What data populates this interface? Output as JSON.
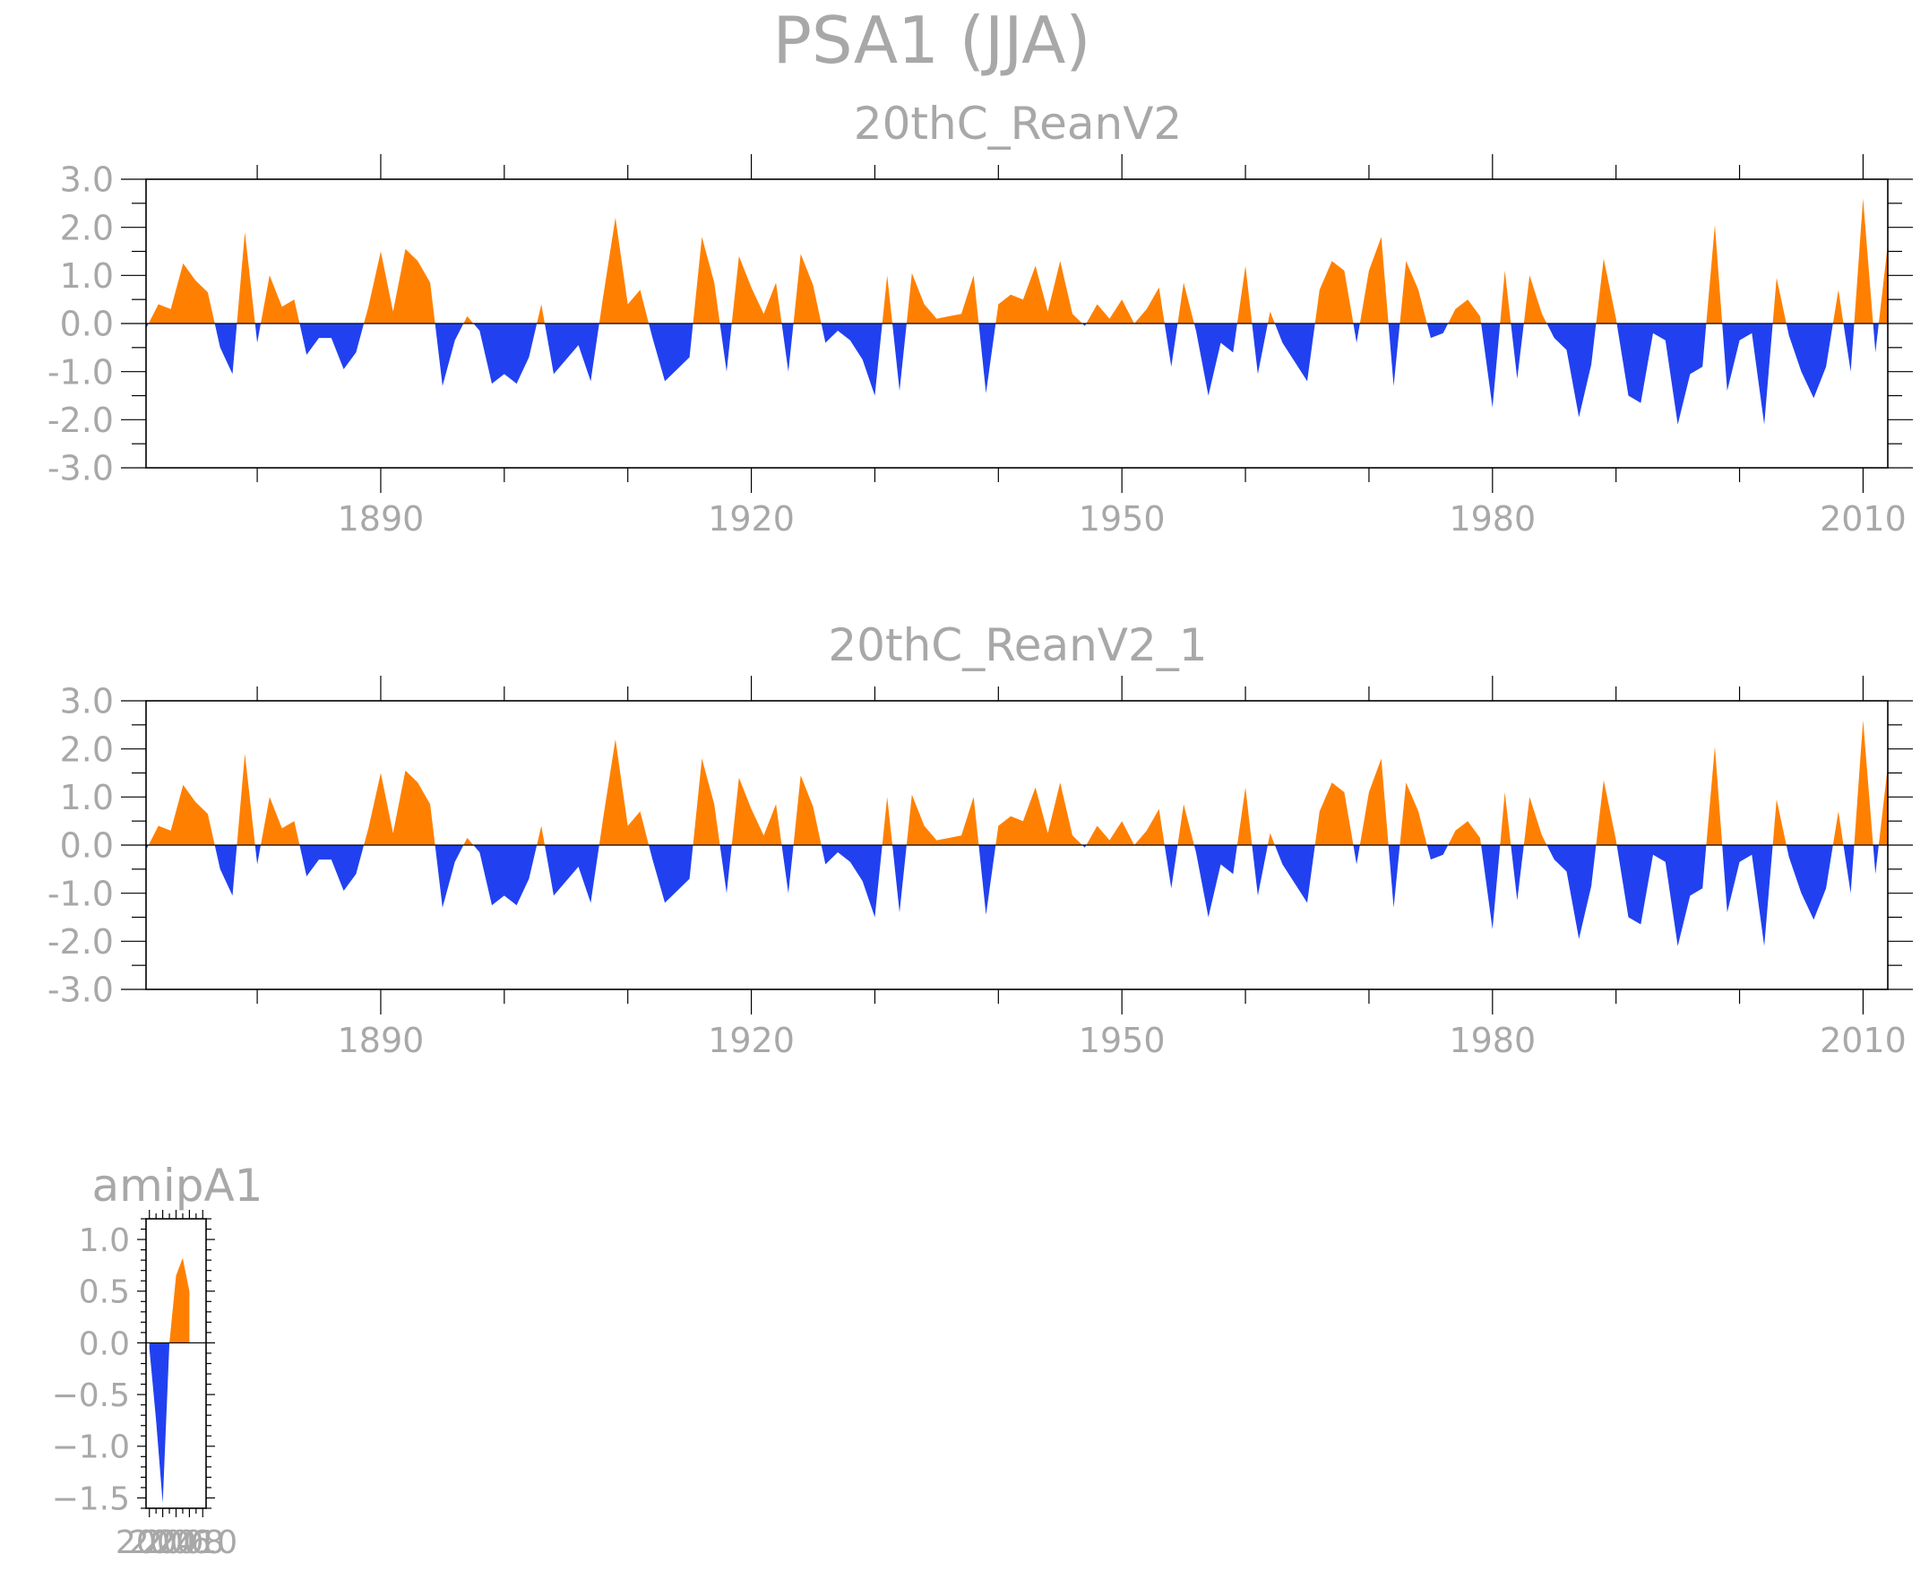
{
  "title": "PSA1  (JJA)",
  "colors": {
    "positive": "#ff8000",
    "negative": "#2141f0",
    "axis": "#000000",
    "text": "#a8a8a8"
  },
  "chart_data": [
    {
      "type": "area",
      "title": "20thC_ReanV2",
      "xlim": [
        1871,
        2012
      ],
      "ylim": [
        -3.0,
        3.0
      ],
      "yticks": [
        -3.0,
        -2.0,
        -1.0,
        0.0,
        1.0,
        2.0,
        3.0
      ],
      "ytick_labels": [
        "-3.0",
        "-2.0",
        "-1.0",
        "0.0",
        "1.0",
        "2.0",
        "3.0"
      ],
      "xticks_major": [
        1890,
        1920,
        1950,
        1980,
        2010
      ],
      "xtick_labels": [
        "1890",
        "1920",
        "1950",
        "1980",
        "2010"
      ],
      "x_start": 1871,
      "values": [
        -0.1,
        0.4,
        0.3,
        1.25,
        0.9,
        0.65,
        -0.5,
        -1.05,
        1.9,
        -0.4,
        1.0,
        0.35,
        0.5,
        -0.65,
        -0.3,
        -0.3,
        -0.95,
        -0.6,
        0.35,
        1.5,
        0.25,
        1.55,
        1.3,
        0.85,
        -1.3,
        -0.35,
        0.15,
        -0.15,
        -1.25,
        -1.05,
        -1.25,
        -0.7,
        0.4,
        -1.05,
        -0.75,
        -0.45,
        -1.2,
        0.55,
        2.2,
        0.4,
        0.7,
        -0.3,
        -1.2,
        -0.95,
        -0.7,
        1.8,
        0.85,
        -1.0,
        1.4,
        0.75,
        0.2,
        0.85,
        -1.0,
        1.45,
        0.8,
        -0.4,
        -0.15,
        -0.35,
        -0.75,
        -1.5,
        1.0,
        -1.4,
        1.05,
        0.4,
        0.1,
        0.15,
        0.2,
        1.0,
        -1.45,
        0.4,
        0.6,
        0.5,
        1.2,
        0.25,
        1.3,
        0.2,
        -0.05,
        0.4,
        0.1,
        0.5,
        0.0,
        0.3,
        0.75,
        -0.9,
        0.85,
        -0.15,
        -1.5,
        -0.4,
        -0.6,
        1.2,
        -1.05,
        0.25,
        -0.4,
        -0.8,
        -1.2,
        0.7,
        1.3,
        1.1,
        -0.4,
        1.1,
        1.8,
        -1.3,
        1.3,
        0.7,
        -0.3,
        -0.2,
        0.3,
        0.5,
        0.15,
        -1.75,
        1.1,
        -1.15,
        1.0,
        0.2,
        -0.3,
        -0.55,
        -1.95,
        -0.85,
        1.35,
        0.1,
        -1.5,
        -1.65,
        -0.2,
        -0.35,
        -2.1,
        -1.05,
        -0.9,
        2.05,
        -1.4,
        -0.35,
        -0.2,
        -2.1,
        0.95,
        -0.25,
        -1.0,
        -1.55,
        -0.9,
        0.7,
        -1.0,
        2.6,
        -0.6,
        1.65
      ]
    },
    {
      "type": "area",
      "title": "20thC_ReanV2_1",
      "xlim": [
        1871,
        2012
      ],
      "ylim": [
        -3.0,
        3.0
      ],
      "yticks": [
        -3.0,
        -2.0,
        -1.0,
        0.0,
        1.0,
        2.0,
        3.0
      ],
      "ytick_labels": [
        "-3.0",
        "-2.0",
        "-1.0",
        "0.0",
        "1.0",
        "2.0",
        "3.0"
      ],
      "xticks_major": [
        1890,
        1920,
        1950,
        1980,
        2010
      ],
      "xtick_labels": [
        "1890",
        "1920",
        "1950",
        "1980",
        "2010"
      ],
      "x_start": 1871,
      "values": [
        -0.1,
        0.4,
        0.3,
        1.25,
        0.9,
        0.65,
        -0.5,
        -1.05,
        1.9,
        -0.4,
        1.0,
        0.35,
        0.5,
        -0.65,
        -0.3,
        -0.3,
        -0.95,
        -0.6,
        0.35,
        1.5,
        0.25,
        1.55,
        1.3,
        0.85,
        -1.3,
        -0.35,
        0.15,
        -0.15,
        -1.25,
        -1.05,
        -1.25,
        -0.7,
        0.4,
        -1.05,
        -0.75,
        -0.45,
        -1.2,
        0.55,
        2.2,
        0.4,
        0.7,
        -0.3,
        -1.2,
        -0.95,
        -0.7,
        1.8,
        0.85,
        -1.0,
        1.4,
        0.75,
        0.2,
        0.85,
        -1.0,
        1.45,
        0.8,
        -0.4,
        -0.15,
        -0.35,
        -0.75,
        -1.5,
        1.0,
        -1.4,
        1.05,
        0.4,
        0.1,
        0.15,
        0.2,
        1.0,
        -1.45,
        0.4,
        0.6,
        0.5,
        1.2,
        0.25,
        1.3,
        0.2,
        -0.05,
        0.4,
        0.1,
        0.5,
        0.0,
        0.3,
        0.75,
        -0.9,
        0.85,
        -0.15,
        -1.5,
        -0.4,
        -0.6,
        1.2,
        -1.05,
        0.25,
        -0.4,
        -0.8,
        -1.2,
        0.7,
        1.3,
        1.1,
        -0.4,
        1.1,
        1.8,
        -1.3,
        1.3,
        0.7,
        -0.3,
        -0.2,
        0.3,
        0.5,
        0.15,
        -1.75,
        1.1,
        -1.15,
        1.0,
        0.2,
        -0.3,
        -0.55,
        -1.95,
        -0.85,
        1.35,
        0.1,
        -1.5,
        -1.65,
        -0.2,
        -0.35,
        -2.1,
        -1.05,
        -0.9,
        2.05,
        -1.4,
        -0.35,
        -0.2,
        -2.1,
        0.95,
        -0.25,
        -1.0,
        -1.55,
        -0.9,
        0.7,
        -1.0,
        2.6,
        -0.6,
        1.65
      ]
    },
    {
      "type": "area",
      "title": "amipA1",
      "xlim": [
        2003.5,
        2012.5
      ],
      "ylim": [
        -1.6,
        1.2
      ],
      "yticks": [
        -1.5,
        -1.0,
        -0.5,
        0.0,
        0.5,
        1.0
      ],
      "ytick_labels": [
        "−1.5",
        "−1.0",
        "−0.5",
        "0.0",
        "0.5",
        "1.0"
      ],
      "xtick_labels": [
        "2004",
        "2006",
        "2008",
        "2010"
      ],
      "x": [
        2004,
        2005,
        2006,
        2007,
        2008,
        2009,
        2010
      ],
      "values": [
        -0.05,
        -0.75,
        -1.55,
        0.0,
        0.65,
        0.82,
        0.5
      ]
    }
  ]
}
